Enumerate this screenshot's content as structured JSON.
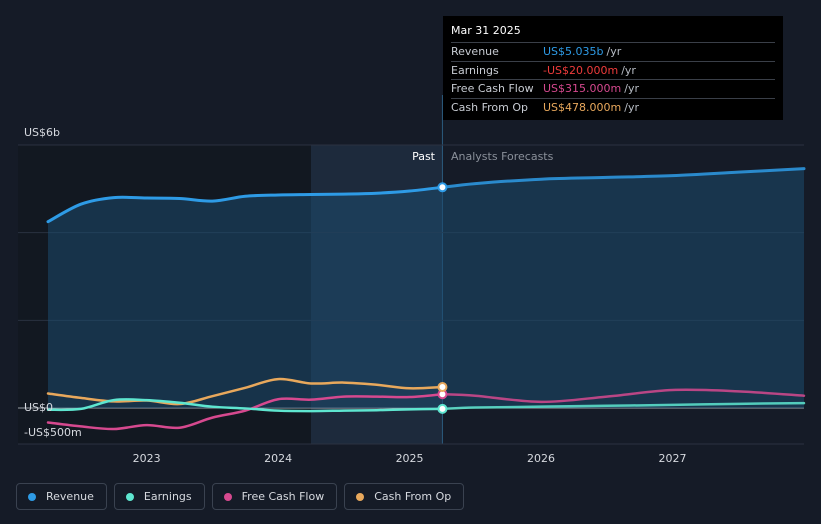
{
  "chart_data": {
    "type": "line",
    "y_axis_labels": {
      "top": "US$6b",
      "zero": "US$0",
      "bottom": "-US$500m"
    },
    "ylim": [
      -500,
      6000
    ],
    "xlim": [
      2022.25,
      2028.0
    ],
    "x_ticks": [
      "2023",
      "2024",
      "2025",
      "2026",
      "2027"
    ],
    "past_label": "Past",
    "forecast_label": "Analysts Forecasts",
    "forecast_start": 2025.25,
    "series": [
      {
        "name": "Revenue",
        "color": "#2e9be6",
        "points": [
          [
            2022.25,
            4250
          ],
          [
            2022.5,
            4650
          ],
          [
            2022.75,
            4800
          ],
          [
            2023.0,
            4790
          ],
          [
            2023.25,
            4780
          ],
          [
            2023.5,
            4720
          ],
          [
            2023.75,
            4830
          ],
          [
            2024.0,
            4860
          ],
          [
            2024.25,
            4870
          ],
          [
            2024.5,
            4880
          ],
          [
            2024.75,
            4900
          ],
          [
            2025.0,
            4950
          ],
          [
            2025.25,
            5035
          ]
        ],
        "forecast": [
          [
            2025.25,
            5035
          ],
          [
            2025.5,
            5120
          ],
          [
            2026.0,
            5220
          ],
          [
            2026.5,
            5260
          ],
          [
            2027.0,
            5300
          ],
          [
            2027.5,
            5380
          ],
          [
            2028.0,
            5460
          ]
        ]
      },
      {
        "name": "Earnings",
        "color": "#5ee6d0",
        "points": [
          [
            2022.25,
            -40
          ],
          [
            2022.5,
            -20
          ],
          [
            2022.75,
            180
          ],
          [
            2023.0,
            180
          ],
          [
            2023.25,
            120
          ],
          [
            2023.5,
            30
          ],
          [
            2023.75,
            -10
          ],
          [
            2024.0,
            -60
          ],
          [
            2024.25,
            -70
          ],
          [
            2024.5,
            -60
          ],
          [
            2024.75,
            -50
          ],
          [
            2025.0,
            -30
          ],
          [
            2025.25,
            -20
          ]
        ],
        "forecast": [
          [
            2025.25,
            -20
          ],
          [
            2025.5,
            10
          ],
          [
            2026.0,
            30
          ],
          [
            2026.5,
            50
          ],
          [
            2027.0,
            70
          ],
          [
            2027.5,
            95
          ],
          [
            2028.0,
            110
          ]
        ]
      },
      {
        "name": "Free Cash Flow",
        "color": "#d6498f",
        "points": [
          [
            2022.25,
            -330
          ],
          [
            2022.5,
            -420
          ],
          [
            2022.75,
            -480
          ],
          [
            2023.0,
            -390
          ],
          [
            2023.25,
            -450
          ],
          [
            2023.5,
            -220
          ],
          [
            2023.75,
            -60
          ],
          [
            2024.0,
            200
          ],
          [
            2024.25,
            190
          ],
          [
            2024.5,
            260
          ],
          [
            2024.75,
            260
          ],
          [
            2025.0,
            250
          ],
          [
            2025.25,
            315
          ]
        ],
        "forecast": [
          [
            2025.25,
            315
          ],
          [
            2025.5,
            280
          ],
          [
            2026.0,
            140
          ],
          [
            2026.5,
            260
          ],
          [
            2027.0,
            410
          ],
          [
            2027.5,
            380
          ],
          [
            2028.0,
            280
          ]
        ]
      },
      {
        "name": "Cash From Op",
        "color": "#e8a85c",
        "points": [
          [
            2022.25,
            330
          ],
          [
            2022.5,
            230
          ],
          [
            2022.75,
            150
          ],
          [
            2023.0,
            170
          ],
          [
            2023.25,
            90
          ],
          [
            2023.5,
            270
          ],
          [
            2023.75,
            460
          ],
          [
            2024.0,
            660
          ],
          [
            2024.25,
            560
          ],
          [
            2024.5,
            580
          ],
          [
            2024.75,
            530
          ],
          [
            2025.0,
            450
          ],
          [
            2025.25,
            478
          ]
        ]
      }
    ]
  },
  "tooltip": {
    "date": "Mar 31 2025",
    "rows": [
      {
        "label": "Revenue",
        "value": "US$5.035b",
        "unit": "/yr",
        "color": "#2e9be6"
      },
      {
        "label": "Earnings",
        "value": "-US$20.000m",
        "unit": "/yr",
        "color": "#ef3b3b"
      },
      {
        "label": "Free Cash Flow",
        "value": "US$315.000m",
        "unit": "/yr",
        "color": "#d6498f"
      },
      {
        "label": "Cash From Op",
        "value": "US$478.000m",
        "unit": "/yr",
        "color": "#e8a85c"
      }
    ]
  },
  "legend": [
    {
      "label": "Revenue",
      "color": "#2e9be6"
    },
    {
      "label": "Earnings",
      "color": "#5ee6d0"
    },
    {
      "label": "Free Cash Flow",
      "color": "#d6498f"
    },
    {
      "label": "Cash From Op",
      "color": "#e8a85c"
    }
  ]
}
